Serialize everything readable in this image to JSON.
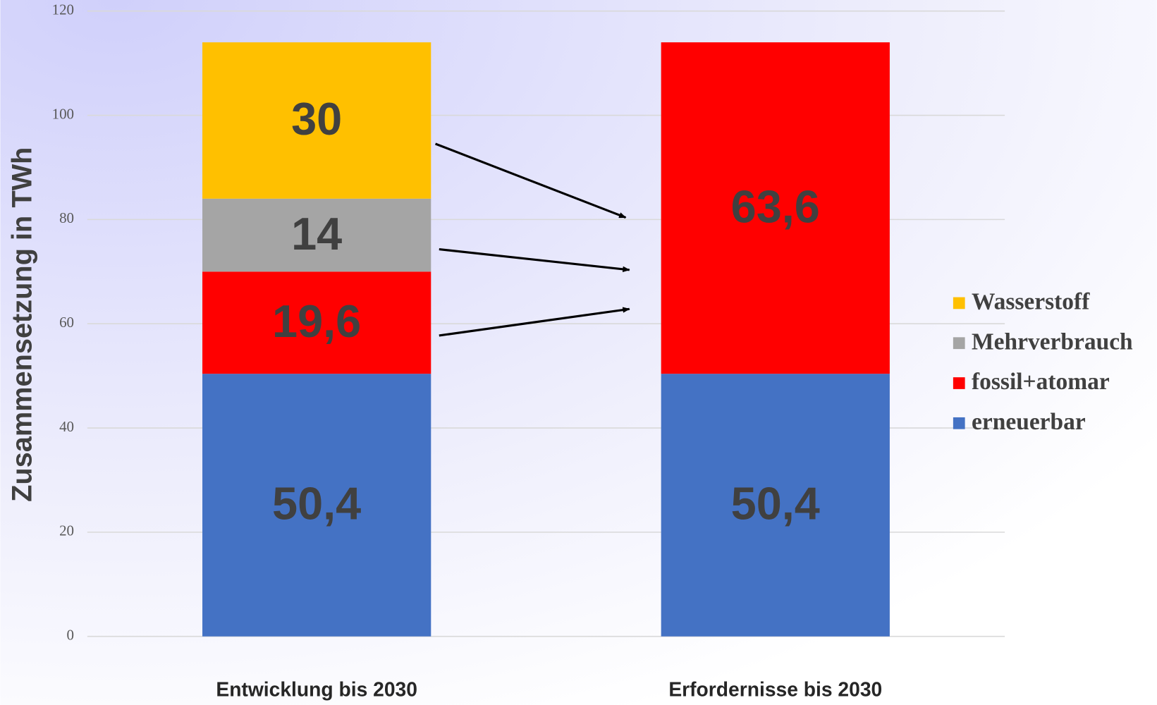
{
  "chart_data": {
    "type": "stacked_bar",
    "y_label": "Zusammensetzung in TWh",
    "categories": [
      "Entwicklung bis 2030",
      "Erfordernisse bis 2030"
    ],
    "series": [
      {
        "name": "erneuerbar",
        "color": "#4472c4",
        "values": [
          50.4,
          50.4
        ],
        "value_labels": [
          "50,4",
          "50,4"
        ]
      },
      {
        "name": "fossil+atomar",
        "color": "#ff0000",
        "values": [
          19.6,
          63.6
        ],
        "value_labels": [
          "19,6",
          "63,6"
        ]
      },
      {
        "name": "Mehrverbrauch",
        "color": "#a5a5a5",
        "values": [
          14,
          null
        ]
      },
      {
        "name": "Wasserstoff",
        "color": "#ffc000",
        "values": [
          30,
          null
        ]
      }
    ],
    "ylim": [
      0,
      120
    ],
    "yticks": [
      0,
      20,
      40,
      60,
      80,
      100,
      120
    ],
    "grid": true,
    "legend": "right"
  }
}
